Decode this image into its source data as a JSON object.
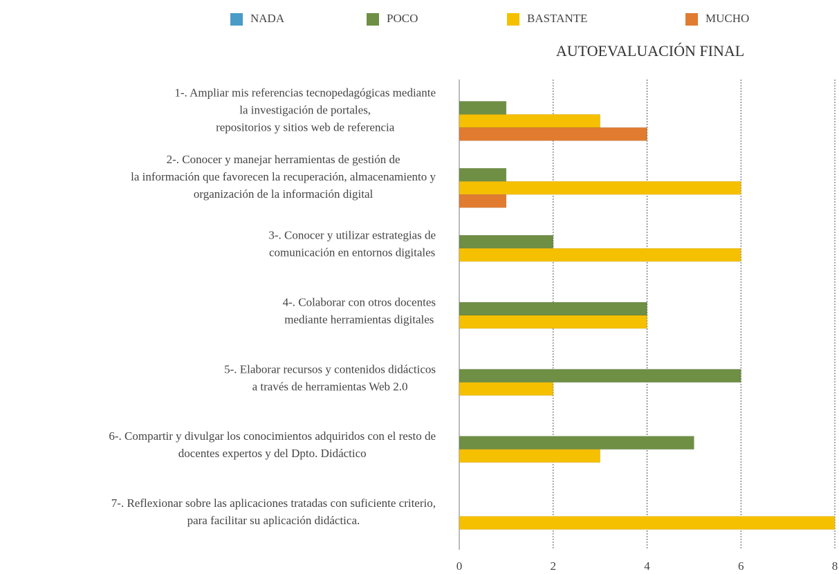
{
  "chart_data": {
    "type": "hbar",
    "title": "AUTOEVALUACIÓN FINAL",
    "categories": [
      [
        "1-. Ampliar mis referencias tecnopedagógicas mediante",
        "la investigación de portales,",
        "repositorios y sitios web de referencia"
      ],
      [
        "2-. Conocer y manejar herramientas de gestión de",
        "la información que favorecen la recuperación, almacenamiento y",
        "organización de la información digital"
      ],
      [
        "3-. Conocer y utilizar estrategias de",
        "comunicación en entornos digitales"
      ],
      [
        "4-. Colaborar con otros docentes",
        "mediante herramientas digitales"
      ],
      [
        "5-. Elaborar recursos y contenidos didácticos",
        "a través de herramientas Web 2.0"
      ],
      [
        "6-. Compartir y divulgar los conocimientos adquiridos con el resto de",
        "docentes expertos y del Dpto. Didáctico"
      ],
      [
        "7-. Reflexionar sobre las aplicaciones tratadas con suficiente criterio,",
        "para facilitar su aplicación didáctica."
      ]
    ],
    "series": [
      {
        "name": "NADA",
        "color": "#4a9bc7",
        "values": [
          0,
          0,
          0,
          0,
          0,
          0,
          0
        ]
      },
      {
        "name": "POCO",
        "color": "#6f8f45",
        "values": [
          1,
          1,
          2,
          4,
          6,
          5,
          0
        ]
      },
      {
        "name": "BASTANTE",
        "color": "#f5c000",
        "values": [
          3,
          6,
          6,
          4,
          2,
          3,
          8
        ]
      },
      {
        "name": "MUCHO",
        "color": "#e07b30",
        "values": [
          4,
          1,
          0,
          0,
          0,
          0,
          0
        ]
      }
    ],
    "xlim": [
      0,
      8
    ],
    "xticks": [
      0,
      2,
      4,
      6,
      8
    ],
    "grid": true,
    "legend": "top"
  }
}
